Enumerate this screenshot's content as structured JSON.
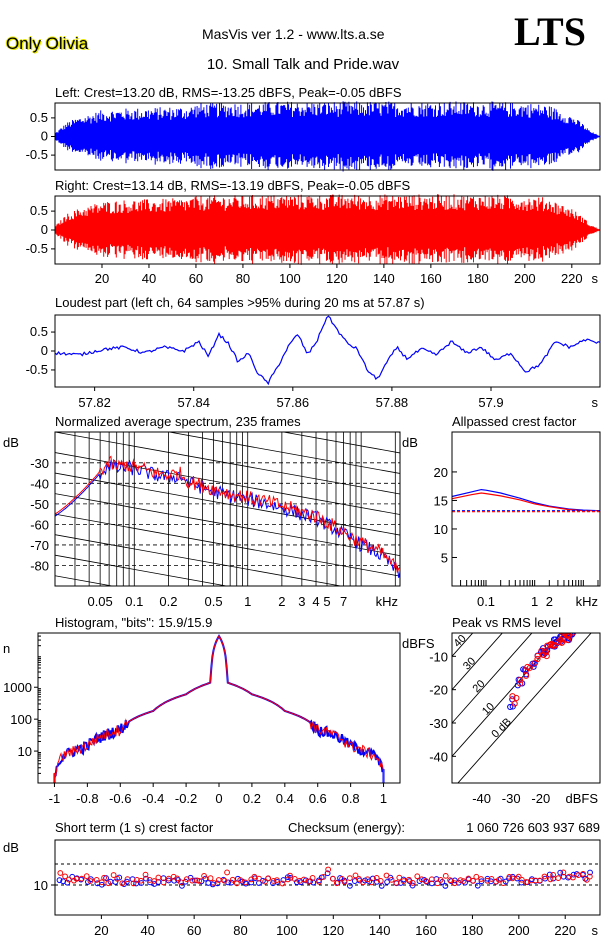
{
  "header": {
    "logo_text": "Only Olivia",
    "app_title": "MasVis ver 1.2 - www.lts.a.se",
    "brand": "LTS",
    "file_name": "10. Small Talk and Pride.wav"
  },
  "colors": {
    "left": "#0000ff",
    "right": "#ff0000",
    "axis": "#000000"
  },
  "chart_data": [
    {
      "id": "left-waveform",
      "type": "area",
      "title": "Left: Crest=13.20 dB, RMS=-13.25 dBFS, Peak=-0.05 dBFS",
      "ylim": [
        -0.9,
        0.9
      ],
      "yticks": [
        0.5,
        0,
        -0.5
      ],
      "xlim": [
        0,
        232
      ],
      "envelope_x": [
        0,
        5,
        10,
        20,
        30,
        40,
        50,
        57,
        60,
        80,
        100,
        120,
        140,
        160,
        180,
        200,
        210,
        220,
        225,
        228,
        232
      ],
      "envelope_amp": [
        0.1,
        0.4,
        0.55,
        0.75,
        0.8,
        0.82,
        0.85,
        0.86,
        0.95,
        0.98,
        1.0,
        1.0,
        1.0,
        1.0,
        1.0,
        0.97,
        0.9,
        0.6,
        0.35,
        0.15,
        0.02
      ]
    },
    {
      "id": "right-waveform",
      "type": "area",
      "title": "Right: Crest=13.14 dB, RMS=-13.19 dBFS, Peak=-0.05 dBFS",
      "ylim": [
        -0.9,
        0.9
      ],
      "yticks": [
        0.5,
        0,
        -0.5
      ],
      "xlim": [
        0,
        232
      ],
      "xticks": [
        20,
        40,
        60,
        80,
        100,
        120,
        140,
        160,
        180,
        200,
        220
      ],
      "xunit": "s",
      "envelope_x": [
        0,
        5,
        10,
        20,
        30,
        40,
        50,
        57,
        60,
        80,
        100,
        120,
        140,
        160,
        180,
        200,
        210,
        220,
        225,
        228,
        232
      ],
      "envelope_amp": [
        0.1,
        0.45,
        0.6,
        0.8,
        0.85,
        0.86,
        0.88,
        0.9,
        0.96,
        0.98,
        1.0,
        1.0,
        1.0,
        1.0,
        1.0,
        0.97,
        0.9,
        0.6,
        0.35,
        0.15,
        0.02
      ]
    },
    {
      "id": "loudest-part",
      "type": "line",
      "title": "Loudest part (left  ch, 64 samples >95% during 20 ms at 57.87 s)",
      "ylim": [
        -0.95,
        0.95
      ],
      "yticks": [
        0.5,
        0,
        -0.5
      ],
      "xlim": [
        57.812,
        57.922
      ],
      "xticks": [
        57.82,
        57.84,
        57.86,
        57.88,
        57.9
      ],
      "xunit": "s",
      "x": [
        57.812,
        57.817,
        57.822,
        57.826,
        57.83,
        57.834,
        57.838,
        57.841,
        57.843,
        57.845,
        57.847,
        57.849,
        57.851,
        57.853,
        57.855,
        57.857,
        57.859,
        57.861,
        57.863,
        57.865,
        57.867,
        57.869,
        57.871,
        57.873,
        57.875,
        57.877,
        57.879,
        57.881,
        57.883,
        57.886,
        57.889,
        57.892,
        57.895,
        57.898,
        57.901,
        57.904,
        57.907,
        57.91,
        57.913,
        57.916,
        57.919,
        57.922
      ],
      "y": [
        -0.05,
        -0.1,
        0.05,
        0.1,
        -0.05,
        0.1,
        0.0,
        0.25,
        -0.15,
        0.45,
        0.2,
        -0.3,
        -0.05,
        -0.6,
        -0.85,
        -0.4,
        0.1,
        0.45,
        -0.1,
        0.3,
        0.95,
        0.55,
        0.2,
        0.05,
        -0.5,
        -0.75,
        -0.3,
        0.1,
        -0.2,
        0.05,
        -0.1,
        0.25,
        -0.05,
        0.1,
        -0.25,
        -0.05,
        -0.55,
        -0.35,
        0.25,
        0.1,
        0.3,
        0.2
      ]
    },
    {
      "id": "spectrum",
      "type": "line",
      "title": "Normalized average spectrum, 235 frames",
      "ylabel": "dB",
      "ylim": [
        -90,
        -15
      ],
      "yticks": [
        -30,
        -40,
        -50,
        -60,
        -70,
        -80
      ],
      "xscale": "log",
      "xlim": [
        0.02,
        22
      ],
      "xticks": [
        0.05,
        0.1,
        0.2,
        0.5,
        1,
        2,
        3,
        4,
        5,
        7
      ],
      "xticklabels": [
        "0.05",
        "0.1",
        "0.2",
        "0.5",
        "1",
        "2",
        "3",
        "4",
        "5",
        "7"
      ],
      "xunit": "kHz",
      "x": [
        0.02,
        0.025,
        0.03,
        0.04,
        0.05,
        0.06,
        0.07,
        0.08,
        0.1,
        0.12,
        0.15,
        0.2,
        0.25,
        0.3,
        0.4,
        0.5,
        0.7,
        1,
        1.5,
        2,
        3,
        4,
        5,
        7,
        10,
        14,
        18,
        22
      ],
      "series": [
        {
          "color": "#0000ff",
          "values": [
            -56,
            -52,
            -48,
            -41,
            -35,
            -31,
            -33,
            -32,
            -33,
            -34,
            -36,
            -37,
            -36,
            -40,
            -42,
            -44,
            -46,
            -48,
            -50,
            -52,
            -55,
            -57,
            -60,
            -65,
            -70,
            -74,
            -79,
            -85
          ]
        },
        {
          "color": "#ff0000",
          "values": [
            -55,
            -51,
            -47,
            -40,
            -34,
            -30,
            -32,
            -31,
            -32,
            -33,
            -35,
            -36,
            -35,
            -39,
            -41,
            -43,
            -45,
            -47,
            -49,
            -51,
            -54,
            -56,
            -59,
            -64,
            -69,
            -73,
            -78,
            -84
          ]
        }
      ]
    },
    {
      "id": "allpassed-crest",
      "type": "line",
      "title": "Allpassed crest factor",
      "ylabel": "dB",
      "ylim": [
        0,
        27
      ],
      "yticks": [
        5,
        10,
        15,
        20
      ],
      "xscale": "log",
      "xlim": [
        0.02,
        22
      ],
      "xticks": [
        0.1,
        1,
        2
      ],
      "xticklabels": [
        "0.1",
        "1",
        "2"
      ],
      "xunit": "kHz",
      "reference_db": 13.2,
      "x": [
        0.02,
        0.05,
        0.08,
        0.1,
        0.2,
        0.5,
        1,
        2,
        5,
        10,
        22
      ],
      "series": [
        {
          "color": "#0000ff",
          "values": [
            15.7,
            16.5,
            16.9,
            16.8,
            16.3,
            15.4,
            14.6,
            14.0,
            13.5,
            13.3,
            13.2
          ]
        },
        {
          "color": "#ff0000",
          "values": [
            15.3,
            16.0,
            16.3,
            16.2,
            15.8,
            15.1,
            14.4,
            13.9,
            13.4,
            13.2,
            13.2
          ]
        }
      ]
    },
    {
      "id": "histogram",
      "type": "line",
      "title": "Histogram, \"bits\": 15.9/15.9",
      "ylabel": "n",
      "yscale": "log",
      "ylim": [
        1,
        50000
      ],
      "yticks": [
        10,
        100,
        1000
      ],
      "yticklabels": [
        "10",
        "100",
        "1000"
      ],
      "xlim": [
        -1.1,
        1.1
      ],
      "xticks": [
        -1,
        -0.8,
        -0.6,
        -0.4,
        -0.2,
        0,
        0.2,
        0.4,
        0.6,
        0.8,
        1
      ],
      "xticklabels": [
        "-1",
        "-0.8",
        "-0.6",
        "-0.4",
        "-0.2",
        "0",
        "0.2",
        "0.4",
        "0.6",
        "0.8",
        "1"
      ],
      "x": [
        -1,
        -0.95,
        -0.8,
        -0.6,
        -0.4,
        -0.2,
        -0.05,
        0,
        0.05,
        0.2,
        0.4,
        0.6,
        0.8,
        0.95,
        1
      ],
      "series": [
        {
          "color": "#ff0000",
          "values": [
            2,
            7,
            15,
            50,
            180,
            600,
            1400,
            40000,
            1400,
            600,
            180,
            50,
            15,
            7,
            2
          ]
        }
      ]
    },
    {
      "id": "peak-vs-rms",
      "type": "scatter",
      "title": "Peak vs RMS level",
      "ylabel": "dBFS",
      "xlabel": "dBFS",
      "xlim": [
        -50,
        0
      ],
      "ylim": [
        -48,
        -3
      ],
      "xticks": [
        -40,
        -30,
        -20
      ],
      "yticks": [
        -10,
        -20,
        -30,
        -40
      ],
      "diagonal_labels": [
        "40",
        "30",
        "20",
        "10",
        "0 dB"
      ],
      "series": [
        {
          "color": "#0000ff",
          "x": [
            -30,
            -27,
            -25,
            -22,
            -20,
            -19,
            -18,
            -16,
            -15,
            -14,
            -13,
            -12,
            -11,
            -10
          ],
          "y": [
            -24,
            -18,
            -15,
            -12,
            -10,
            -9,
            -8,
            -7,
            -6,
            -5,
            -5,
            -4,
            -4,
            -3
          ]
        },
        {
          "color": "#ff0000",
          "x": [
            -29,
            -26,
            -24,
            -21,
            -19,
            -18,
            -17,
            -16,
            -14,
            -13,
            -12,
            -11,
            -10,
            -9
          ],
          "y": [
            -23,
            -17,
            -14,
            -11,
            -9,
            -8,
            -7,
            -6,
            -5,
            -5,
            -4,
            -4,
            -3,
            -3
          ]
        }
      ]
    },
    {
      "id": "short-term-crest",
      "type": "scatter",
      "title": "Short term (1 s) crest factor",
      "ylabel": "dB",
      "ylim": [
        0,
        25
      ],
      "yticks": [
        10
      ],
      "xlim": [
        0,
        235
      ],
      "xticks": [
        20,
        40,
        60,
        80,
        100,
        120,
        140,
        160,
        180,
        200,
        220
      ],
      "xunit": "s",
      "reference_lines": [
        10.0,
        17.0
      ],
      "series": [
        {
          "color": "#0000ff",
          "y": [
            12,
            11,
            11,
            13,
            12,
            12,
            11,
            12,
            11,
            10,
            12,
            11,
            11,
            12,
            10,
            11,
            12,
            11,
            11,
            12,
            11,
            10,
            11,
            12,
            11,
            11,
            12,
            10,
            11,
            12,
            11,
            11,
            12,
            11,
            10,
            11,
            12,
            11,
            11,
            12,
            11,
            10,
            11,
            12,
            11,
            11,
            12,
            11,
            11,
            12,
            13,
            12,
            11,
            11,
            12,
            11,
            11,
            12,
            13,
            14,
            12,
            11,
            12,
            11,
            10,
            11,
            12,
            11,
            11,
            12,
            11,
            10,
            11,
            12,
            11,
            11,
            12,
            11,
            10,
            11,
            12,
            11,
            11,
            12,
            11,
            10,
            11,
            12,
            11,
            11,
            12,
            11,
            10,
            11,
            12,
            11,
            11,
            12,
            11,
            12,
            13,
            12,
            11,
            11,
            12,
            11,
            11,
            12,
            13,
            12,
            14,
            13,
            12,
            13,
            14,
            13,
            12,
            14
          ]
        },
        {
          "color": "#ff0000",
          "y": [
            14,
            13,
            12,
            11,
            12,
            12,
            13,
            11,
            12,
            11,
            12,
            11,
            13,
            12,
            11,
            12,
            11,
            12,
            11,
            13,
            12,
            11,
            12,
            11,
            12,
            13,
            12,
            11,
            12,
            11,
            12,
            11,
            13,
            12,
            11,
            12,
            11,
            14,
            12,
            11,
            12,
            11,
            12,
            13,
            12,
            11,
            12,
            11,
            12,
            11,
            12,
            13,
            12,
            11,
            12,
            11,
            12,
            11,
            13,
            15,
            12,
            11,
            12,
            11,
            12,
            13,
            12,
            11,
            12,
            11,
            12,
            11,
            13,
            12,
            11,
            12,
            11,
            12,
            11,
            13,
            12,
            11,
            12,
            11,
            12,
            13,
            12,
            11,
            12,
            11,
            12,
            11,
            13,
            12,
            11,
            12,
            11,
            12,
            11,
            13,
            12,
            13,
            12,
            11,
            12,
            11,
            12,
            13,
            12,
            13,
            12,
            14,
            13,
            12,
            13,
            14,
            12,
            13
          ]
        }
      ],
      "checksum_label": "Checksum (energy):",
      "checksum_value": "1 060 726 603 937 689"
    }
  ]
}
